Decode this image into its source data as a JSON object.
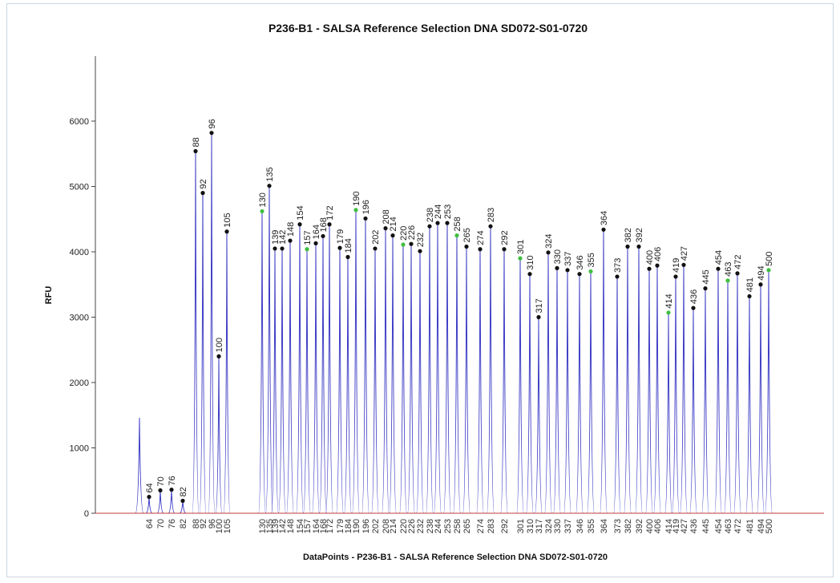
{
  "chart_data": {
    "type": "line",
    "title": "P236-B1 - SALSA Reference Selection DNA SD072-S01-0720",
    "xlabel": "DataPoints - P236-B1 - SALSA Reference Selection DNA SD072-S01-0720",
    "ylabel": "RFU",
    "ylim": [
      0,
      7000
    ],
    "yticks": [
      0,
      1000,
      2000,
      3000,
      4000,
      5000,
      6000
    ],
    "grid": false,
    "colors": {
      "trace": "#3a3ac4",
      "baseline": "#c43a3a",
      "peak_marker": "#111111",
      "peak_marker_alt": "#3fbf3f"
    },
    "unlabeled_peak": {
      "position": 0.3,
      "value": 1460
    },
    "peaks": [
      {
        "label": "64",
        "value": 250,
        "marker": "black"
      },
      {
        "label": "70",
        "value": 350,
        "marker": "black"
      },
      {
        "label": "76",
        "value": 360,
        "marker": "black"
      },
      {
        "label": "82",
        "value": 190,
        "marker": "black"
      },
      {
        "label": "88",
        "value": 5540,
        "marker": "black"
      },
      {
        "label": "92",
        "value": 4900,
        "marker": "black"
      },
      {
        "label": "96",
        "value": 5820,
        "marker": "black"
      },
      {
        "label": "100",
        "value": 2400,
        "marker": "black"
      },
      {
        "label": "105",
        "value": 4310,
        "marker": "black"
      },
      {
        "label": "130",
        "value": 4620,
        "marker": "green"
      },
      {
        "label": "135",
        "value": 5010,
        "marker": "black"
      },
      {
        "label": "139",
        "value": 4050,
        "marker": "black"
      },
      {
        "label": "142",
        "value": 4050,
        "marker": "black"
      },
      {
        "label": "148",
        "value": 4170,
        "marker": "black"
      },
      {
        "label": "154",
        "value": 4420,
        "marker": "black"
      },
      {
        "label": "157",
        "value": 4040,
        "marker": "green"
      },
      {
        "label": "164",
        "value": 4130,
        "marker": "black"
      },
      {
        "label": "168",
        "value": 4240,
        "marker": "black"
      },
      {
        "label": "172",
        "value": 4420,
        "marker": "black"
      },
      {
        "label": "179",
        "value": 4060,
        "marker": "black"
      },
      {
        "label": "184",
        "value": 3920,
        "marker": "black"
      },
      {
        "label": "190",
        "value": 4640,
        "marker": "green"
      },
      {
        "label": "196",
        "value": 4510,
        "marker": "black"
      },
      {
        "label": "202",
        "value": 4050,
        "marker": "black"
      },
      {
        "label": "208",
        "value": 4360,
        "marker": "black"
      },
      {
        "label": "214",
        "value": 4250,
        "marker": "black"
      },
      {
        "label": "220",
        "value": 4110,
        "marker": "green"
      },
      {
        "label": "226",
        "value": 4120,
        "marker": "black"
      },
      {
        "label": "232",
        "value": 4010,
        "marker": "black"
      },
      {
        "label": "238",
        "value": 4390,
        "marker": "black"
      },
      {
        "label": "244",
        "value": 4440,
        "marker": "black"
      },
      {
        "label": "253",
        "value": 4440,
        "marker": "black"
      },
      {
        "label": "258",
        "value": 4250,
        "marker": "green"
      },
      {
        "label": "265",
        "value": 4080,
        "marker": "black"
      },
      {
        "label": "274",
        "value": 4040,
        "marker": "black"
      },
      {
        "label": "283",
        "value": 4390,
        "marker": "black"
      },
      {
        "label": "292",
        "value": 4040,
        "marker": "black"
      },
      {
        "label": "301",
        "value": 3900,
        "marker": "green"
      },
      {
        "label": "310",
        "value": 3660,
        "marker": "black"
      },
      {
        "label": "317",
        "value": 3000,
        "marker": "black"
      },
      {
        "label": "324",
        "value": 3990,
        "marker": "black"
      },
      {
        "label": "330",
        "value": 3750,
        "marker": "black"
      },
      {
        "label": "337",
        "value": 3720,
        "marker": "black"
      },
      {
        "label": "346",
        "value": 3660,
        "marker": "black"
      },
      {
        "label": "355",
        "value": 3700,
        "marker": "green"
      },
      {
        "label": "364",
        "value": 4340,
        "marker": "black"
      },
      {
        "label": "373",
        "value": 3620,
        "marker": "black"
      },
      {
        "label": "382",
        "value": 4080,
        "marker": "black"
      },
      {
        "label": "392",
        "value": 4080,
        "marker": "black"
      },
      {
        "label": "400",
        "value": 3740,
        "marker": "black"
      },
      {
        "label": "406",
        "value": 3790,
        "marker": "black"
      },
      {
        "label": "414",
        "value": 3070,
        "marker": "green"
      },
      {
        "label": "419",
        "value": 3620,
        "marker": "black"
      },
      {
        "label": "427",
        "value": 3800,
        "marker": "black"
      },
      {
        "label": "436",
        "value": 3140,
        "marker": "black"
      },
      {
        "label": "445",
        "value": 3440,
        "marker": "black"
      },
      {
        "label": "454",
        "value": 3740,
        "marker": "black"
      },
      {
        "label": "463",
        "value": 3560,
        "marker": "green"
      },
      {
        "label": "472",
        "value": 3670,
        "marker": "black"
      },
      {
        "label": "481",
        "value": 3320,
        "marker": "black"
      },
      {
        "label": "494",
        "value": 3500,
        "marker": "black"
      },
      {
        "label": "500",
        "value": 3720,
        "marker": "green"
      }
    ]
  }
}
